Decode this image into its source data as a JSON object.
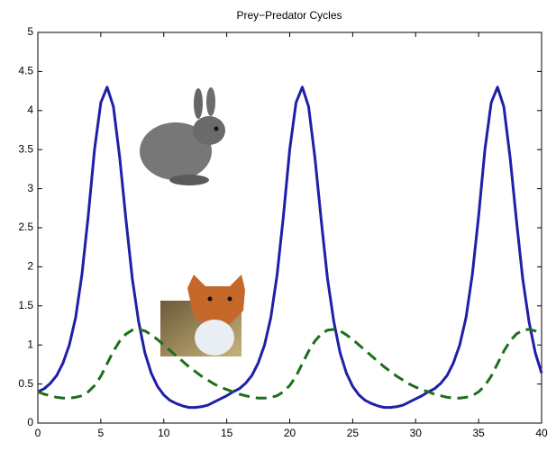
{
  "chart_data": {
    "type": "line",
    "title": "Prey−Predator Cycles",
    "x": [
      0,
      0.5,
      1,
      1.5,
      2,
      2.5,
      3,
      3.5,
      4,
      4.5,
      5,
      5.5,
      6,
      6.5,
      7,
      7.5,
      8,
      8.5,
      9,
      9.5,
      10,
      10.5,
      11,
      11.5,
      12,
      12.5,
      13,
      13.5,
      14,
      14.5,
      15,
      15.5,
      16,
      16.5,
      17,
      17.5,
      18,
      18.5,
      19,
      19.5,
      20,
      20.5,
      21,
      21.5,
      22,
      22.5,
      23,
      23.5,
      24,
      24.5,
      25,
      25.5,
      26,
      26.5,
      27,
      27.5,
      28,
      28.5,
      29,
      29.5,
      30,
      30.5,
      31,
      31.5,
      32,
      32.5,
      33,
      33.5,
      34,
      34.5,
      35,
      35.5,
      36,
      36.5,
      37,
      37.5,
      38,
      38.5,
      39,
      39.5,
      40
    ],
    "series": [
      {
        "color": "#1f1fa8",
        "dash": false,
        "values": [
          0.4,
          0.44,
          0.51,
          0.61,
          0.77,
          1.0,
          1.35,
          1.9,
          2.65,
          3.5,
          4.1,
          4.3,
          4.05,
          3.4,
          2.6,
          1.85,
          1.3,
          0.9,
          0.64,
          0.47,
          0.36,
          0.29,
          0.25,
          0.22,
          0.2,
          0.2,
          0.21,
          0.23,
          0.27,
          0.31,
          0.35,
          0.4,
          0.44,
          0.51,
          0.61,
          0.77,
          1.0,
          1.35,
          1.9,
          2.65,
          3.5,
          4.1,
          4.3,
          4.05,
          3.4,
          2.6,
          1.85,
          1.3,
          0.9,
          0.64,
          0.47,
          0.36,
          0.29,
          0.25,
          0.22,
          0.2,
          0.2,
          0.21,
          0.23,
          0.27,
          0.31,
          0.35,
          0.4,
          0.44,
          0.51,
          0.61,
          0.77,
          1.0,
          1.35,
          1.9,
          2.65,
          3.5,
          4.1,
          4.3,
          4.05,
          3.4,
          2.6,
          1.85,
          1.3,
          0.9,
          0.64
        ]
      },
      {
        "color": "#1e6e1e",
        "dash": true,
        "values": [
          0.4,
          0.37,
          0.35,
          0.33,
          0.32,
          0.32,
          0.33,
          0.35,
          0.4,
          0.48,
          0.6,
          0.76,
          0.92,
          1.05,
          1.14,
          1.19,
          1.2,
          1.18,
          1.13,
          1.07,
          1.0,
          0.93,
          0.86,
          0.79,
          0.72,
          0.66,
          0.6,
          0.55,
          0.5,
          0.46,
          0.43,
          0.4,
          0.37,
          0.35,
          0.33,
          0.32,
          0.32,
          0.33,
          0.35,
          0.4,
          0.48,
          0.6,
          0.76,
          0.92,
          1.05,
          1.14,
          1.19,
          1.2,
          1.18,
          1.13,
          1.07,
          1.0,
          0.93,
          0.86,
          0.79,
          0.72,
          0.66,
          0.6,
          0.55,
          0.5,
          0.46,
          0.43,
          0.4,
          0.37,
          0.35,
          0.33,
          0.32,
          0.32,
          0.33,
          0.35,
          0.4,
          0.48,
          0.6,
          0.76,
          0.92,
          1.05,
          1.14,
          1.19,
          1.2,
          1.18,
          1.13
        ]
      }
    ],
    "xlim": [
      0,
      40
    ],
    "xticks": [
      0,
      5,
      10,
      15,
      20,
      25,
      30,
      35,
      40
    ],
    "ylim": [
      0,
      5
    ],
    "yticks": [
      0,
      0.5,
      1,
      1.5,
      2,
      2.5,
      3,
      3.5,
      4,
      4.5,
      5
    ]
  }
}
